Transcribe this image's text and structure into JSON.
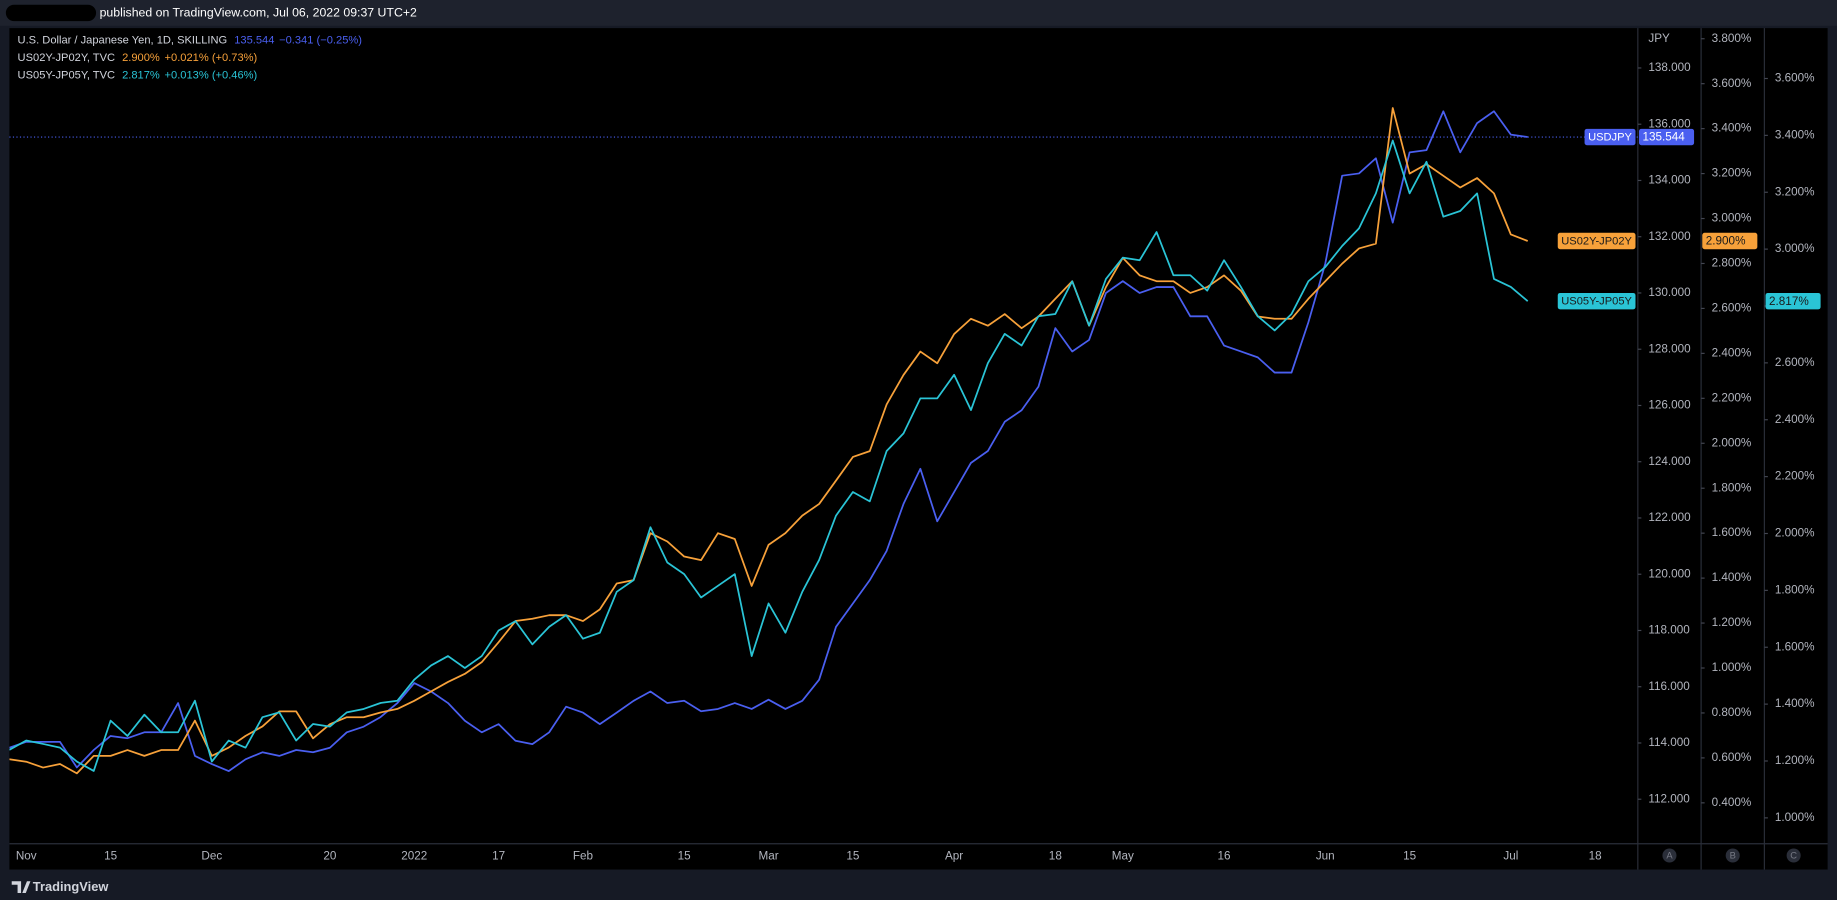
{
  "header": {
    "text": "published on TradingView.com, Jul 06, 2022 09:37 UTC+2"
  },
  "footer": {
    "brand": "TradingView"
  },
  "chart_data": {
    "type": "line",
    "legend": [
      {
        "title": "U.S. Dollar / Japanese Yen, 1D, SKILLING",
        "value": "135.544",
        "change": "−0.341 (−0.25%)"
      },
      {
        "title": "US02Y-JP02Y, TVC",
        "value": "2.900%",
        "change": "+0.021% (+0.73%)"
      },
      {
        "title": "US05Y-JP05Y, TVC",
        "value": "2.817%",
        "change": "+0.013% (+0.46%)"
      }
    ],
    "ylabel": "JPY",
    "axis_buttons": [
      "A",
      "B",
      "C"
    ],
    "grid": false,
    "categories": [
      null,
      "Nov",
      null,
      null,
      null,
      null,
      "15",
      null,
      null,
      null,
      null,
      null,
      "Dec",
      null,
      null,
      null,
      null,
      null,
      null,
      "20",
      null,
      null,
      null,
      null,
      "2022",
      null,
      null,
      null,
      null,
      "17",
      null,
      null,
      null,
      null,
      "Feb",
      null,
      null,
      null,
      null,
      null,
      "15",
      null,
      null,
      null,
      null,
      "Mar",
      null,
      null,
      null,
      null,
      "15",
      null,
      null,
      null,
      null,
      null,
      "Apr",
      null,
      null,
      null,
      null,
      null,
      "18",
      null,
      null,
      null,
      "May",
      null,
      null,
      null,
      null,
      null,
      "16",
      null,
      null,
      null,
      null,
      null,
      "Jun",
      null,
      null,
      null,
      null,
      "15",
      null,
      null,
      null,
      null,
      null,
      "Jul",
      null,
      null,
      null,
      null,
      "18"
    ],
    "series": [
      {
        "name": "USDJPY",
        "color": "#4a5ff0",
        "tag_text_color": "#ffffff",
        "axis": "y",
        "price_line": true,
        "last_value_label": "135.544",
        "values": [
          113.83,
          114.04,
          114.04,
          114.04,
          113.13,
          113.75,
          114.25,
          114.17,
          114.38,
          114.38,
          115.42,
          113.54,
          113.25,
          113.0,
          113.42,
          113.67,
          113.54,
          113.75,
          113.67,
          113.83,
          114.38,
          114.58,
          114.92,
          115.42,
          116.13,
          115.83,
          115.42,
          114.79,
          114.38,
          114.67,
          114.08,
          113.96,
          114.38,
          115.29,
          115.08,
          114.67,
          115.08,
          115.5,
          115.83,
          115.42,
          115.5,
          115.13,
          115.21,
          115.42,
          115.21,
          115.54,
          115.21,
          115.5,
          116.25,
          118.13,
          118.96,
          119.79,
          120.83,
          122.5,
          123.75,
          121.88,
          122.92,
          123.96,
          124.38,
          125.42,
          125.83,
          126.67,
          128.75,
          127.92,
          128.33,
          130.0,
          130.42,
          130.0,
          130.21,
          130.21,
          129.17,
          129.17,
          128.13,
          127.92,
          127.71,
          127.17,
          127.17,
          128.96,
          131.04,
          134.17,
          134.25,
          134.79,
          132.5,
          135.0,
          135.08,
          136.46,
          135.0,
          136.04,
          136.46,
          135.63,
          135.544,
          null,
          null,
          null,
          null
        ]
      },
      {
        "name": "US02Y-JP02Y",
        "color": "#f7a13a",
        "tag_text_color": "#1a1a1a",
        "axis": "y2",
        "price_line": false,
        "last_value_label": "2.900%",
        "values": [
          0.594,
          0.583,
          0.557,
          0.573,
          0.531,
          0.609,
          0.609,
          0.635,
          0.609,
          0.635,
          0.635,
          0.766,
          0.609,
          0.646,
          0.698,
          0.74,
          0.807,
          0.807,
          0.687,
          0.75,
          0.781,
          0.781,
          0.802,
          0.818,
          0.854,
          0.896,
          0.938,
          0.974,
          1.026,
          1.115,
          1.209,
          1.219,
          1.235,
          1.235,
          1.209,
          1.261,
          1.376,
          1.391,
          1.6,
          1.563,
          1.496,
          1.48,
          1.6,
          1.574,
          1.365,
          1.548,
          1.6,
          1.678,
          1.73,
          1.834,
          1.939,
          1.965,
          2.173,
          2.304,
          2.408,
          2.356,
          2.486,
          2.554,
          2.523,
          2.575,
          2.512,
          2.564,
          2.643,
          2.721,
          2.523,
          2.695,
          2.825,
          2.747,
          2.721,
          2.721,
          2.669,
          2.695,
          2.747,
          2.679,
          2.564,
          2.554,
          2.554,
          2.643,
          2.721,
          2.799,
          2.867,
          2.888,
          3.492,
          3.2,
          3.242,
          3.19,
          3.138,
          3.18,
          3.112,
          2.929,
          2.9,
          null,
          null,
          null,
          null
        ]
      },
      {
        "name": "US05Y-JP05Y",
        "color": "#2ac4d6",
        "tag_text_color": "#1a1a1a",
        "axis": "y3",
        "price_line": false,
        "last_value_label": "2.817%",
        "values": [
          1.239,
          1.272,
          1.26,
          1.247,
          1.198,
          1.165,
          1.342,
          1.288,
          1.363,
          1.301,
          1.301,
          1.412,
          1.198,
          1.272,
          1.247,
          1.354,
          1.371,
          1.272,
          1.33,
          1.321,
          1.371,
          1.383,
          1.404,
          1.412,
          1.486,
          1.536,
          1.569,
          1.527,
          1.569,
          1.659,
          1.692,
          1.61,
          1.672,
          1.713,
          1.63,
          1.651,
          1.795,
          1.836,
          2.022,
          1.898,
          1.857,
          1.775,
          1.816,
          1.857,
          1.569,
          1.754,
          1.651,
          1.795,
          1.907,
          2.063,
          2.146,
          2.113,
          2.29,
          2.352,
          2.475,
          2.475,
          2.558,
          2.434,
          2.599,
          2.702,
          2.661,
          2.764,
          2.772,
          2.887,
          2.731,
          2.895,
          2.97,
          2.961,
          3.06,
          2.908,
          2.908,
          2.854,
          2.961,
          2.867,
          2.764,
          2.714,
          2.772,
          2.887,
          2.937,
          3.011,
          3.073,
          3.196,
          3.382,
          3.196,
          3.307,
          3.114,
          3.134,
          3.196,
          2.895,
          2.867,
          2.817,
          null,
          null,
          null,
          null
        ]
      }
    ],
    "ylim": [
      110.417,
      139.375
    ],
    "yticks": [
      {
        "value": 112,
        "label": "112.000"
      },
      {
        "value": 114,
        "label": "114.000"
      },
      {
        "value": 116,
        "label": "116.000"
      },
      {
        "value": 118,
        "label": "118.000"
      },
      {
        "value": 120,
        "label": "120.000"
      },
      {
        "value": 122,
        "label": "122.000"
      },
      {
        "value": 124,
        "label": "124.000"
      },
      {
        "value": 126,
        "label": "126.000"
      },
      {
        "value": 128,
        "label": "128.000"
      },
      {
        "value": 130,
        "label": "130.000"
      },
      {
        "value": 132,
        "label": "132.000"
      },
      {
        "value": 134,
        "label": "134.000"
      },
      {
        "value": 136,
        "label": "136.000"
      },
      {
        "value": 138,
        "label": "138.000"
      }
    ],
    "y2lim": [
      0.218,
      3.842
    ],
    "y2ticks": [
      {
        "value": 0.4,
        "label": "0.400%"
      },
      {
        "value": 0.6,
        "label": "0.600%"
      },
      {
        "value": 0.8,
        "label": "0.800%"
      },
      {
        "value": 1.0,
        "label": "1.000%"
      },
      {
        "value": 1.2,
        "label": "1.200%"
      },
      {
        "value": 1.4,
        "label": "1.400%"
      },
      {
        "value": 1.6,
        "label": "1.600%"
      },
      {
        "value": 1.8,
        "label": "1.800%"
      },
      {
        "value": 2.0,
        "label": "2.000%"
      },
      {
        "value": 2.2,
        "label": "2.200%"
      },
      {
        "value": 2.4,
        "label": "2.400%"
      },
      {
        "value": 2.6,
        "label": "2.600%"
      },
      {
        "value": 2.8,
        "label": "2.800%"
      },
      {
        "value": 3.0,
        "label": "3.000%"
      },
      {
        "value": 3.2,
        "label": "3.200%"
      },
      {
        "value": 3.4,
        "label": "3.400%"
      },
      {
        "value": 3.6,
        "label": "3.600%"
      },
      {
        "value": 3.8,
        "label": "3.800%"
      }
    ],
    "y3lim": [
      0.909,
      3.773
    ],
    "y3ticks": [
      {
        "value": 1.0,
        "label": "1.000%"
      },
      {
        "value": 1.2,
        "label": "1.200%"
      },
      {
        "value": 1.4,
        "label": "1.400%"
      },
      {
        "value": 1.6,
        "label": "1.600%"
      },
      {
        "value": 1.8,
        "label": "1.800%"
      },
      {
        "value": 2.0,
        "label": "2.000%"
      },
      {
        "value": 2.2,
        "label": "2.200%"
      },
      {
        "value": 2.4,
        "label": "2.400%"
      },
      {
        "value": 2.6,
        "label": "2.600%"
      },
      {
        "value": 2.8,
        "label": "2.800%"
      },
      {
        "value": 3.0,
        "label": "3.000%"
      },
      {
        "value": 3.2,
        "label": "3.200%"
      },
      {
        "value": 3.4,
        "label": "3.400%"
      },
      {
        "value": 3.6,
        "label": "3.600%"
      }
    ]
  }
}
